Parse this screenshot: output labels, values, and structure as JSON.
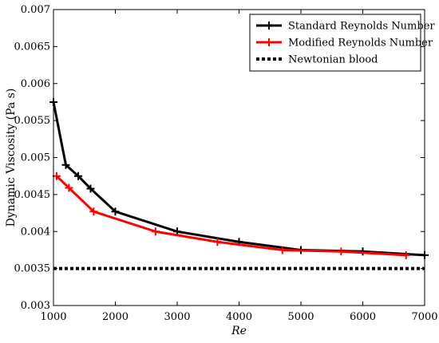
{
  "chart_data": {
    "type": "line",
    "title": "",
    "xlabel": "Re",
    "ylabel": "Dynamic Viscosity (Pa s)",
    "xlim": [
      1000,
      7000
    ],
    "ylim": [
      0.003,
      0.007
    ],
    "xticks": [
      1000,
      2000,
      3000,
      4000,
      5000,
      6000,
      7000
    ],
    "xtick_labels": [
      "1000",
      "2000",
      "3000",
      "4000",
      "5000",
      "6000",
      "7000"
    ],
    "yticks": [
      0.003,
      0.0035,
      0.004,
      0.0045,
      0.005,
      0.0055,
      0.006,
      0.0065,
      0.007
    ],
    "ytick_labels": [
      "0.003",
      "0.0035",
      "0.004",
      "0.0045",
      "0.005",
      "0.0055",
      "0.006",
      "0.0065",
      "0.007"
    ],
    "grid": false,
    "legend_position": "top-right",
    "series": [
      {
        "name": "Standard Reynolds Number",
        "color": "#000000",
        "marker": "plus",
        "line_style": "solid",
        "x": [
          1000,
          1200,
          1400,
          1600,
          2000,
          3000,
          4000,
          5000,
          6000,
          7000
        ],
        "y": [
          0.00575,
          0.0049,
          0.00475,
          0.00458,
          0.00427,
          0.004,
          0.00386,
          0.00375,
          0.00373,
          0.00368
        ]
      },
      {
        "name": "Modified Reynolds Number",
        "color": "#ff0000",
        "marker": "plus",
        "line_style": "solid",
        "x": [
          1050,
          1250,
          1650,
          2650,
          3650,
          4700,
          5650,
          6700
        ],
        "y": [
          0.00475,
          0.00459,
          0.00427,
          0.004,
          0.00386,
          0.00375,
          0.00373,
          0.00368
        ]
      },
      {
        "name": "Newtonian blood",
        "color": "#000000",
        "marker": "none",
        "line_style": "dotted",
        "x": [
          1000,
          7000
        ],
        "y": [
          0.0035,
          0.0035
        ]
      }
    ]
  }
}
